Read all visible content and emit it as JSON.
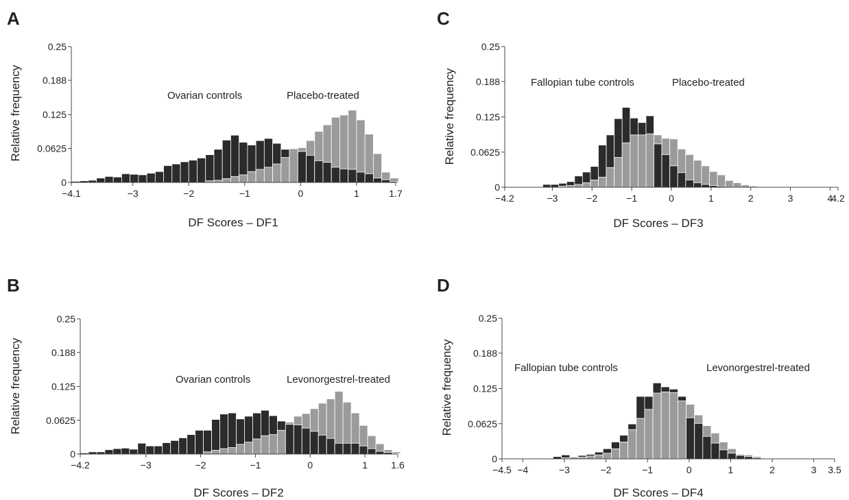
{
  "colors": {
    "control": "#2b2b2b",
    "treated": "#9b9b9b",
    "bar_edge": "#ffffff"
  },
  "chart_data": [
    {
      "panel": "A",
      "type": "bar",
      "subtype": "overlapping histogram",
      "xlabel": "DF Scores – DF1",
      "ylabel": "Relative frequency",
      "xlim": [
        -4.1,
        1.7
      ],
      "ylim": [
        0,
        0.25
      ],
      "xticks": [
        -4.1,
        -3,
        -2,
        -1,
        0,
        1,
        1.7
      ],
      "xtick_labels": [
        "−4.1",
        "−3",
        "−2",
        "−1",
        "0",
        "1",
        "1.7"
      ],
      "yticks": [
        0,
        0.0625,
        0.125,
        0.188,
        0.25
      ],
      "ytick_labels": [
        "0",
        "0.0625",
        "0.125",
        "0.188",
        "0.25"
      ],
      "annotations": [
        "Ovarian controls",
        "Placebo-treated"
      ],
      "bins": {
        "start": -4.1,
        "width": 0.15
      },
      "series": [
        {
          "name": "Ovarian controls",
          "color": "control",
          "values": [
            0.002,
            0.003,
            0.004,
            0.008,
            0.011,
            0.01,
            0.016,
            0.015,
            0.014,
            0.017,
            0.02,
            0.031,
            0.034,
            0.038,
            0.041,
            0.045,
            0.051,
            0.061,
            0.078,
            0.087,
            0.074,
            0.069,
            0.077,
            0.081,
            0.072,
            0.061,
            0.062,
            0.057,
            0.05,
            0.04,
            0.037,
            0.028,
            0.025,
            0.024,
            0.019,
            0.016,
            0.008,
            0.005,
            0.002
          ]
        },
        {
          "name": "Placebo-treated",
          "color": "treated",
          "values": [
            0,
            0,
            0,
            0,
            0,
            0,
            0,
            0,
            0,
            0,
            0,
            0,
            0,
            0,
            0,
            0,
            0.003,
            0.004,
            0.007,
            0.011,
            0.014,
            0.02,
            0.024,
            0.028,
            0.034,
            0.046,
            0.062,
            0.064,
            0.077,
            0.094,
            0.106,
            0.12,
            0.124,
            0.133,
            0.115,
            0.089,
            0.053,
            0.019,
            0.008
          ]
        }
      ]
    },
    {
      "panel": "B",
      "type": "bar",
      "subtype": "overlapping histogram",
      "xlabel": "DF Scores – DF2",
      "ylabel": "Relative frequency",
      "xlim": [
        -4.2,
        1.6
      ],
      "ylim": [
        0,
        0.25
      ],
      "xticks": [
        -4.2,
        -3,
        -2,
        -1,
        0,
        1,
        1.6
      ],
      "xtick_labels": [
        "−4.2",
        "−3",
        "−2",
        "−1",
        "0",
        "1",
        "1.6"
      ],
      "yticks": [
        0,
        0.0625,
        0.125,
        0.188,
        0.25
      ],
      "ytick_labels": [
        "0",
        "0.0625",
        "0.125",
        "0.188",
        "0.25"
      ],
      "annotations": [
        "Ovarian controls",
        "Levonorgestrel-treated"
      ],
      "bins": {
        "start": -4.2,
        "width": 0.15
      },
      "series": [
        {
          "name": "Ovarian controls",
          "color": "control",
          "values": [
            0.002,
            0.004,
            0.004,
            0.008,
            0.01,
            0.011,
            0.009,
            0.02,
            0.015,
            0.015,
            0.021,
            0.025,
            0.03,
            0.036,
            0.044,
            0.044,
            0.064,
            0.074,
            0.076,
            0.065,
            0.07,
            0.076,
            0.081,
            0.071,
            0.061,
            0.055,
            0.054,
            0.048,
            0.042,
            0.035,
            0.029,
            0.02,
            0.02,
            0.02,
            0.015,
            0.01,
            0.005,
            0.003,
            0.001
          ]
        },
        {
          "name": "Levonorgestrel-treated",
          "color": "treated",
          "values": [
            0,
            0,
            0,
            0,
            0,
            0,
            0,
            0,
            0,
            0,
            0,
            0,
            0,
            0,
            0,
            0.004,
            0.007,
            0.01,
            0.012,
            0.018,
            0.022,
            0.028,
            0.034,
            0.036,
            0.044,
            0.059,
            0.07,
            0.075,
            0.084,
            0.094,
            0.102,
            0.116,
            0.096,
            0.076,
            0.053,
            0.034,
            0.019,
            0.008,
            0.004
          ]
        }
      ]
    },
    {
      "panel": "C",
      "type": "bar",
      "subtype": "overlapping histogram",
      "xlabel": "DF Scores – DF3",
      "ylabel": "Relative frequency",
      "xlim": [
        -4.2,
        4.2
      ],
      "ylim": [
        0,
        0.25
      ],
      "xticks": [
        -4.2,
        -3,
        -2,
        -1,
        0,
        1,
        2,
        3,
        4,
        4.2
      ],
      "xtick_labels": [
        "−4.2",
        "−3",
        "−2",
        "−1",
        "0",
        "1",
        "2",
        "3",
        "4",
        "4.2"
      ],
      "yticks": [
        0,
        0.0625,
        0.125,
        0.188,
        0.25
      ],
      "ytick_labels": [
        "0",
        "0.0625",
        "0.125",
        "0.188",
        "0.25"
      ],
      "annotations": [
        "Fallopian tube controls",
        "Placebo-treated"
      ],
      "bins": {
        "start": -3.24,
        "width": 0.2
      },
      "series": [
        {
          "name": "Fallopian tube controls",
          "color": "control",
          "values": [
            0.005,
            0.005,
            0.007,
            0.01,
            0.02,
            0.027,
            0.037,
            0.075,
            0.093,
            0.122,
            0.142,
            0.123,
            0.115,
            0.127,
            0.077,
            0.058,
            0.038,
            0.026,
            0.013,
            0.008,
            0.005,
            0.003,
            0.002,
            0,
            0,
            0,
            0
          ]
        },
        {
          "name": "Placebo-treated",
          "color": "treated",
          "values": [
            0,
            0,
            0.002,
            0.003,
            0.005,
            0.008,
            0.013,
            0.018,
            0.035,
            0.053,
            0.079,
            0.093,
            0.093,
            0.095,
            0.093,
            0.087,
            0.086,
            0.068,
            0.058,
            0.048,
            0.038,
            0.028,
            0.022,
            0.012,
            0.008,
            0.004,
            0.002
          ]
        }
      ]
    },
    {
      "panel": "D",
      "type": "bar",
      "subtype": "overlapping histogram",
      "xlabel": "DF Scores – DF4",
      "ylabel": "Relative frequency",
      "xlim": [
        -4.5,
        3.5
      ],
      "ylim": [
        0,
        0.25
      ],
      "xticks": [
        -4.5,
        -4,
        -3,
        -2,
        -1,
        0,
        1,
        2,
        3,
        3.5
      ],
      "xtick_labels": [
        "−4.5",
        "−4",
        "−3",
        "−2",
        "−1",
        "0",
        "1",
        "2",
        "3",
        "3.5"
      ],
      "yticks": [
        0,
        0.0625,
        0.125,
        0.188,
        0.25
      ],
      "ytick_labels": [
        "0",
        "0.0625",
        "0.125",
        "0.188",
        "0.25"
      ],
      "annotations": [
        "Fallopian tube controls",
        "Levonorgestrel-treated"
      ],
      "bins": {
        "start": -3.87,
        "width": 0.2
      },
      "series": [
        {
          "name": "Fallopian tube controls",
          "color": "control",
          "values": [
            0.001,
            0.001,
            0.001,
            0.004,
            0.007,
            0.004,
            0.006,
            0.008,
            0.012,
            0.018,
            0.03,
            0.042,
            0.062,
            0.111,
            0.111,
            0.135,
            0.128,
            0.124,
            0.111,
            0.073,
            0.063,
            0.04,
            0.028,
            0.016,
            0.01,
            0.006,
            0.004,
            0.002,
            0
          ]
        },
        {
          "name": "Levonorgestrel-treated",
          "color": "treated",
          "values": [
            0,
            0,
            0,
            0,
            0.002,
            0.003,
            0.003,
            0.005,
            0.007,
            0.01,
            0.018,
            0.03,
            0.052,
            0.072,
            0.088,
            0.117,
            0.119,
            0.118,
            0.103,
            0.097,
            0.078,
            0.059,
            0.046,
            0.03,
            0.018,
            0.008,
            0.007,
            0.004,
            0.001
          ]
        }
      ]
    }
  ]
}
